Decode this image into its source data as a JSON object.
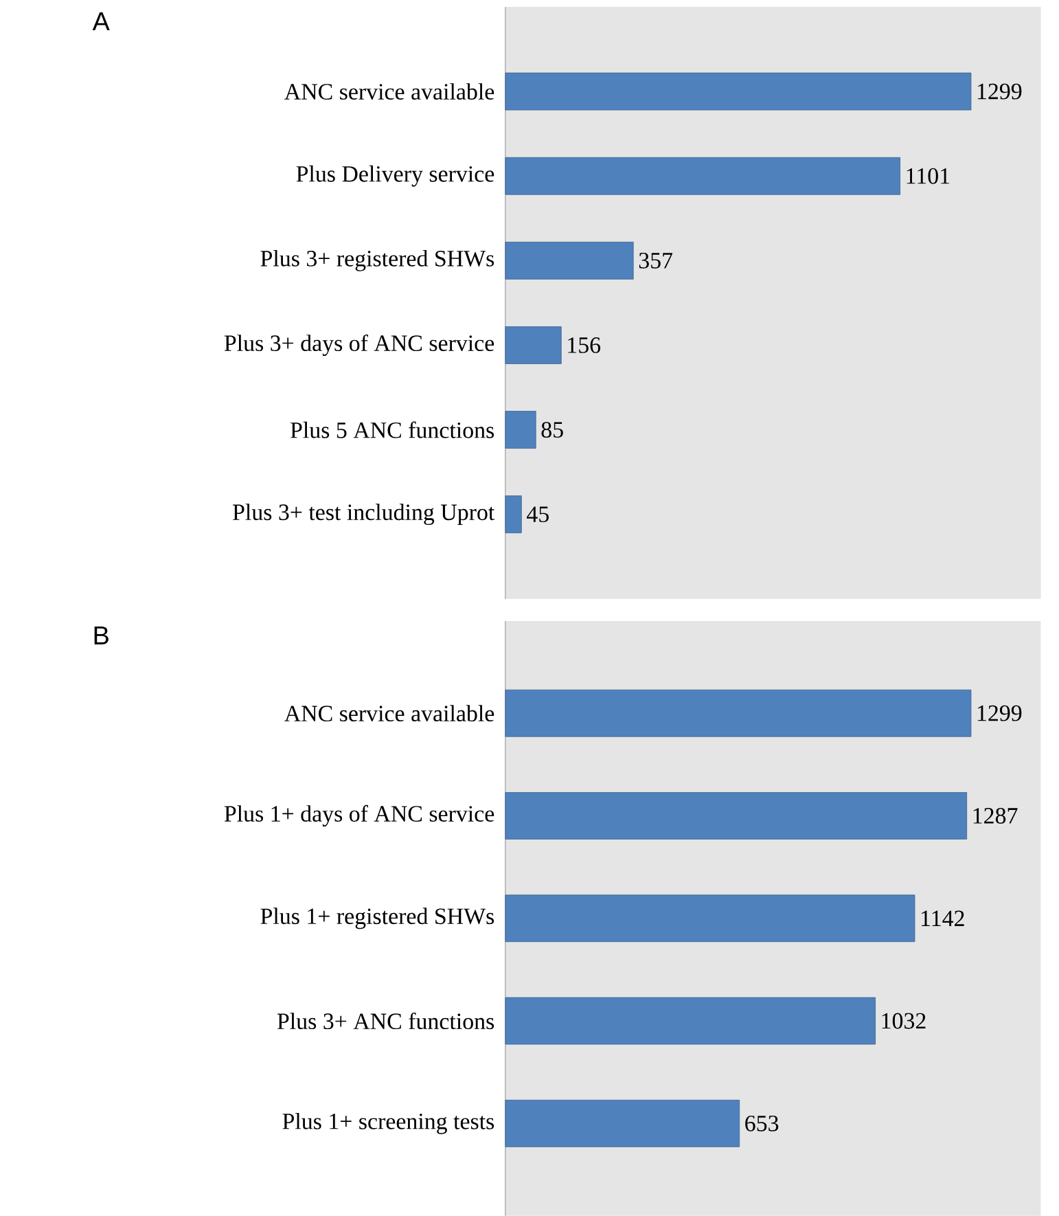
{
  "chart_data": [
    {
      "type": "bar",
      "orientation": "horizontal",
      "title": "A",
      "categories": [
        "ANC service available",
        "Plus Delivery service",
        "Plus 3+ registered SHWs",
        "Plus 3+ days of ANC service",
        "Plus 5 ANC functions",
        "Plus 3+ test including Uprot"
      ],
      "values": [
        1299,
        1101,
        357,
        156,
        85,
        45
      ],
      "color": "#4f81bd",
      "data_labels": true,
      "tick_labels": "y"
    },
    {
      "type": "bar",
      "orientation": "horizontal",
      "title": "B",
      "categories": [
        "ANC service available",
        "Plus 1+ days of ANC service",
        "Plus 1+ registered SHWs",
        "Plus 3+ ANC functions",
        "Plus 1+ screening tests"
      ],
      "values": [
        1299,
        1287,
        1142,
        1032,
        653
      ],
      "color": "#4f81bd",
      "data_labels": true,
      "tick_labels": "y"
    }
  ]
}
